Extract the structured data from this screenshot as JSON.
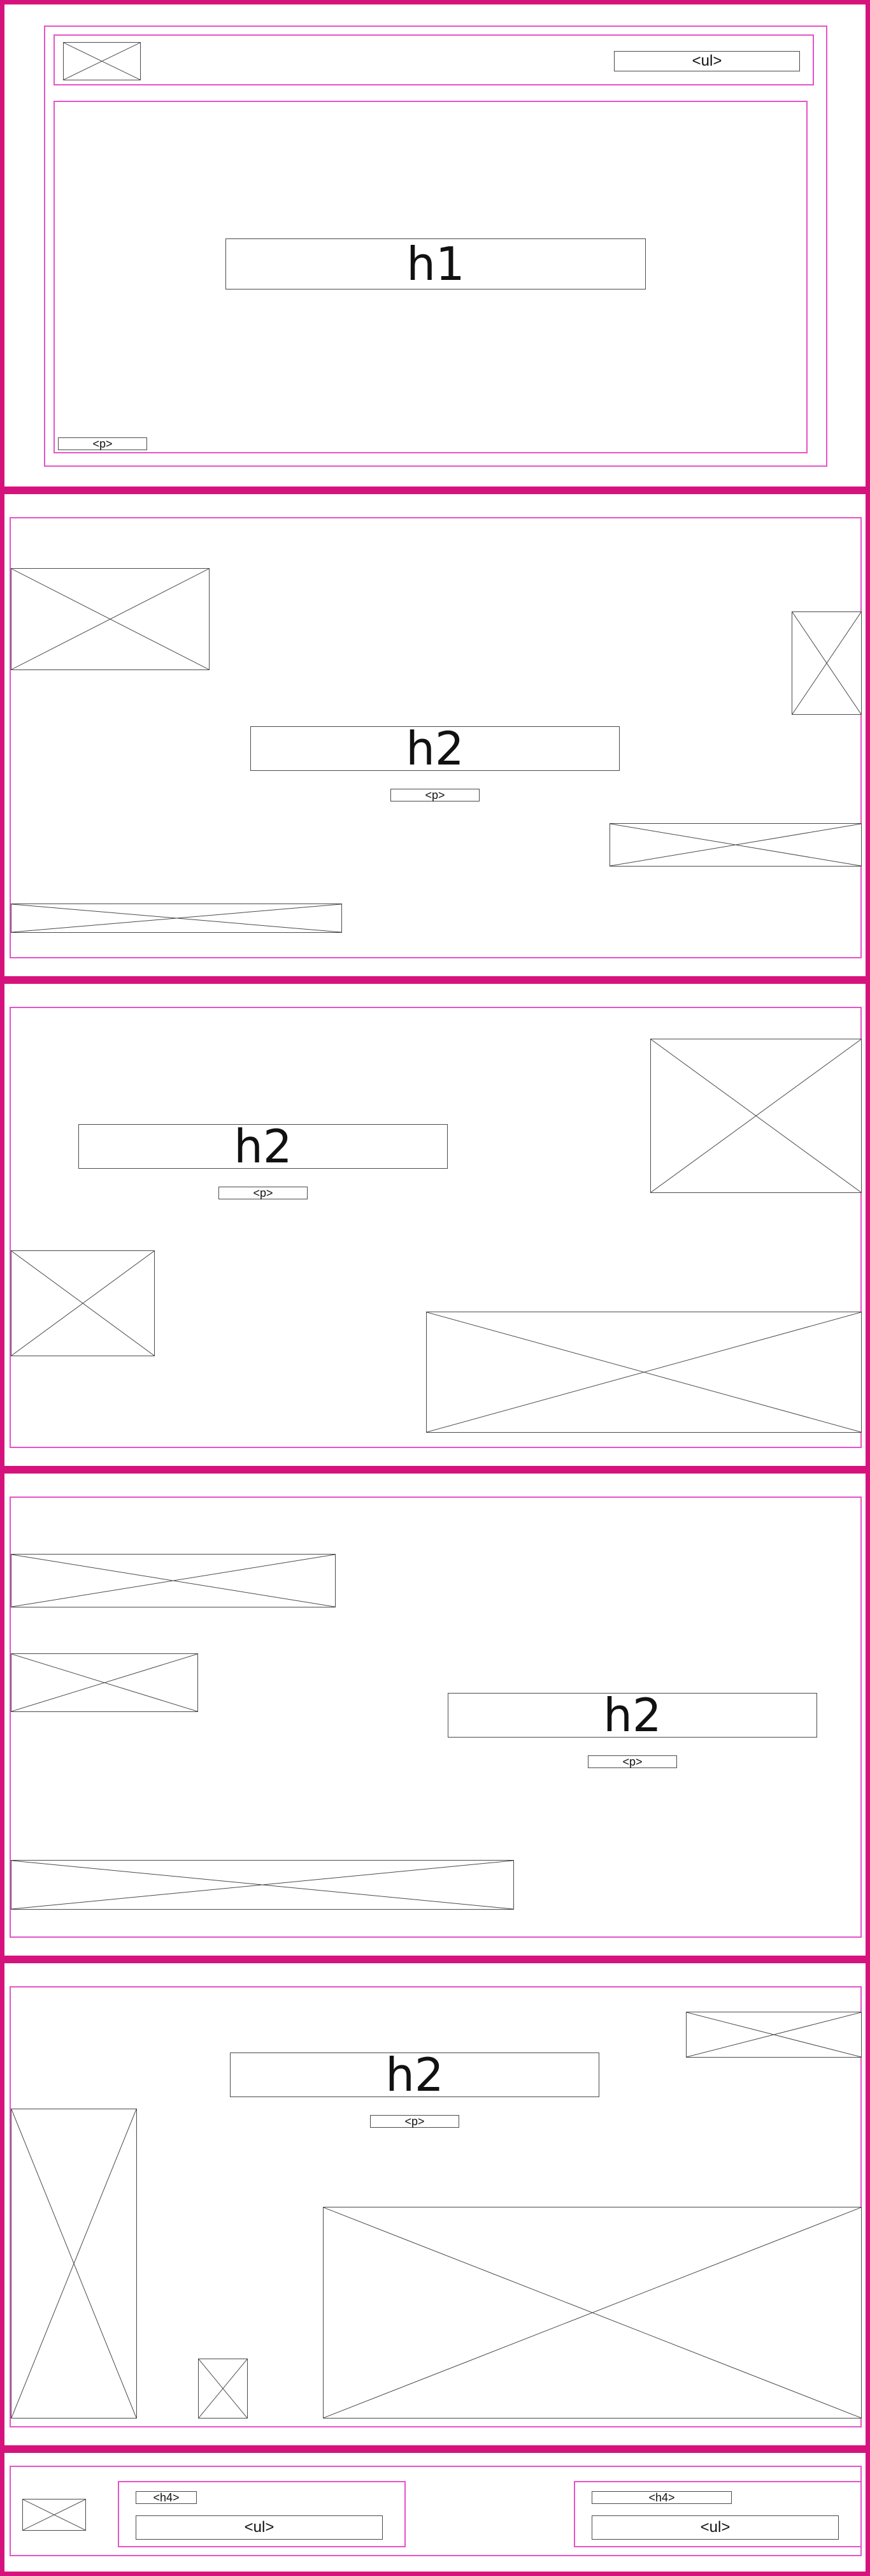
{
  "colors": {
    "section_border": "#d6137d",
    "container_border": "#e653c8",
    "box_border": "#4a4a4a"
  },
  "header": {
    "logo_icon": "image-placeholder-icon",
    "nav_label": "<ul>",
    "title": "h1",
    "paragraph": "<p>"
  },
  "sections": [
    {
      "heading": "h2",
      "paragraph": "<p>"
    },
    {
      "heading": "h2",
      "paragraph": "<p>"
    },
    {
      "heading": "h2",
      "paragraph": "<p>"
    },
    {
      "heading": "h2",
      "paragraph": "<p>"
    }
  ],
  "footer": {
    "logo_icon": "image-placeholder-icon",
    "col1": {
      "heading": "<h4>",
      "list": "<ul>"
    },
    "col2": {
      "heading": "<h4>",
      "list": "<ul>"
    }
  }
}
